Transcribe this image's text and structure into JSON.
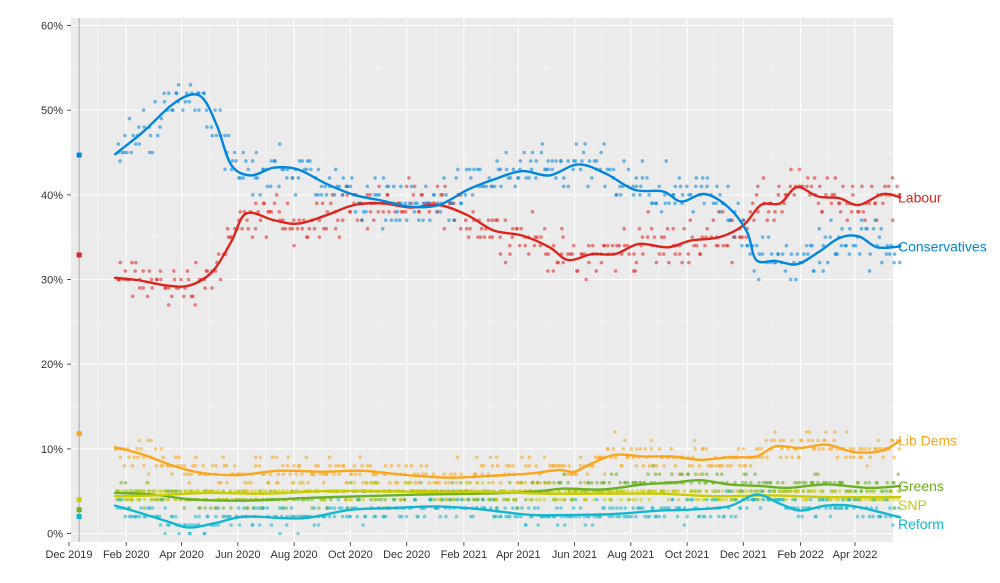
{
  "chart_data": {
    "type": "scatter",
    "title": "",
    "xlabel": "",
    "ylabel": "",
    "xlim": [
      "2019-12-01",
      "2022-05-31"
    ],
    "ylim": [
      0,
      60
    ],
    "grid": true,
    "legend": "right, direct labels at line ends",
    "x_ticks": [
      {
        "date": "2019-12-01",
        "label": "Dec 2019"
      },
      {
        "date": "2020-02-01",
        "label": "Feb 2020"
      },
      {
        "date": "2020-04-01",
        "label": "Apr 2020"
      },
      {
        "date": "2020-06-01",
        "label": "Jun 2020"
      },
      {
        "date": "2020-08-01",
        "label": "Aug 2020"
      },
      {
        "date": "2020-10-01",
        "label": "Oct 2020"
      },
      {
        "date": "2020-12-01",
        "label": "Dec 2020"
      },
      {
        "date": "2021-02-01",
        "label": "Feb 2021"
      },
      {
        "date": "2021-04-01",
        "label": "Apr 2021"
      },
      {
        "date": "2021-06-01",
        "label": "Jun 2021"
      },
      {
        "date": "2021-08-01",
        "label": "Aug 2021"
      },
      {
        "date": "2021-10-01",
        "label": "Oct 2021"
      },
      {
        "date": "2021-12-01",
        "label": "Dec 2021"
      },
      {
        "date": "2022-02-01",
        "label": "Feb 2022"
      },
      {
        "date": "2022-04-01",
        "label": "Apr 2022"
      }
    ],
    "y_ticks": [
      {
        "value": 0,
        "label": "0%"
      },
      {
        "value": 10,
        "label": "10%"
      },
      {
        "value": 20,
        "label": "20%"
      },
      {
        "value": 30,
        "label": "30%"
      },
      {
        "value": 40,
        "label": "40%"
      },
      {
        "value": 50,
        "label": "50%"
      },
      {
        "value": 60,
        "label": "60%"
      }
    ],
    "election_marker_date": "2019-12-12",
    "series": [
      {
        "name": "Labour",
        "color": "#dc241f",
        "election_result": 32.9,
        "jitter": 2.2,
        "trend": [
          [
            "2020-01-20",
            30.2
          ],
          [
            "2020-02-15",
            29.9
          ],
          [
            "2020-03-15",
            29.3
          ],
          [
            "2020-04-10",
            29.3
          ],
          [
            "2020-05-05",
            31.0
          ],
          [
            "2020-05-25",
            34.5
          ],
          [
            "2020-06-10",
            37.8
          ],
          [
            "2020-07-10",
            37.0
          ],
          [
            "2020-08-05",
            36.6
          ],
          [
            "2020-09-05",
            37.6
          ],
          [
            "2020-10-05",
            38.8
          ],
          [
            "2020-11-05",
            39.0
          ],
          [
            "2020-12-05",
            38.5
          ],
          [
            "2021-01-05",
            38.8
          ],
          [
            "2021-02-05",
            37.6
          ],
          [
            "2021-03-05",
            35.8
          ],
          [
            "2021-04-05",
            35.2
          ],
          [
            "2021-05-05",
            33.8
          ],
          [
            "2021-05-25",
            32.3
          ],
          [
            "2021-06-20",
            33.0
          ],
          [
            "2021-07-15",
            33.0
          ],
          [
            "2021-08-10",
            34.2
          ],
          [
            "2021-09-10",
            33.8
          ],
          [
            "2021-10-05",
            34.6
          ],
          [
            "2021-11-05",
            35.0
          ],
          [
            "2021-12-01",
            36.4
          ],
          [
            "2021-12-20",
            38.8
          ],
          [
            "2022-01-10",
            39.0
          ],
          [
            "2022-01-28",
            40.9
          ],
          [
            "2022-02-20",
            39.8
          ],
          [
            "2022-03-15",
            39.6
          ],
          [
            "2022-04-05",
            38.8
          ],
          [
            "2022-05-01",
            40.1
          ],
          [
            "2022-05-20",
            39.7
          ]
        ]
      },
      {
        "name": "Conservatives",
        "color": "#0087dc",
        "election_result": 44.7,
        "jitter": 2.4,
        "trend": [
          [
            "2020-01-20",
            44.8
          ],
          [
            "2020-02-20",
            47.5
          ],
          [
            "2020-03-20",
            50.5
          ],
          [
            "2020-04-10",
            51.8
          ],
          [
            "2020-04-25",
            51.3
          ],
          [
            "2020-05-10",
            48.0
          ],
          [
            "2020-05-25",
            43.5
          ],
          [
            "2020-06-15",
            42.3
          ],
          [
            "2020-07-10",
            43.2
          ],
          [
            "2020-08-05",
            43.0
          ],
          [
            "2020-09-05",
            41.3
          ],
          [
            "2020-10-05",
            40.0
          ],
          [
            "2020-11-05",
            39.3
          ],
          [
            "2020-12-05",
            38.6
          ],
          [
            "2021-01-05",
            38.8
          ],
          [
            "2021-02-05",
            40.6
          ],
          [
            "2021-03-05",
            41.8
          ],
          [
            "2021-04-05",
            42.8
          ],
          [
            "2021-05-05",
            42.3
          ],
          [
            "2021-06-05",
            43.6
          ],
          [
            "2021-07-05",
            42.5
          ],
          [
            "2021-08-05",
            40.6
          ],
          [
            "2021-09-05",
            40.4
          ],
          [
            "2021-09-25",
            39.2
          ],
          [
            "2021-10-20",
            40.1
          ],
          [
            "2021-11-15",
            38.5
          ],
          [
            "2021-12-05",
            35.6
          ],
          [
            "2021-12-15",
            32.3
          ],
          [
            "2022-01-05",
            32.2
          ],
          [
            "2022-01-28",
            31.8
          ],
          [
            "2022-02-20",
            33.2
          ],
          [
            "2022-03-15",
            34.9
          ],
          [
            "2022-04-05",
            35.1
          ],
          [
            "2022-04-25",
            33.8
          ],
          [
            "2022-05-20",
            33.9
          ]
        ]
      },
      {
        "name": "Lib Dems",
        "color": "#faa61a",
        "election_result": 11.8,
        "jitter": 1.6,
        "trend": [
          [
            "2020-01-20",
            10.2
          ],
          [
            "2020-02-20",
            9.3
          ],
          [
            "2020-03-20",
            8.1
          ],
          [
            "2020-04-20",
            7.2
          ],
          [
            "2020-06-01",
            6.9
          ],
          [
            "2020-07-15",
            7.4
          ],
          [
            "2020-09-01",
            7.3
          ],
          [
            "2020-10-15",
            7.4
          ],
          [
            "2020-12-01",
            6.9
          ],
          [
            "2021-01-15",
            6.6
          ],
          [
            "2021-03-01",
            6.8
          ],
          [
            "2021-04-15",
            7.1
          ],
          [
            "2021-05-15",
            7.5
          ],
          [
            "2021-06-01",
            7.3
          ],
          [
            "2021-06-20",
            8.3
          ],
          [
            "2021-07-15",
            9.3
          ],
          [
            "2021-08-15",
            9.1
          ],
          [
            "2021-09-15",
            9.1
          ],
          [
            "2021-10-15",
            8.7
          ],
          [
            "2021-11-15",
            9.0
          ],
          [
            "2021-12-15",
            9.1
          ],
          [
            "2022-01-05",
            10.3
          ],
          [
            "2022-02-01",
            10.1
          ],
          [
            "2022-03-01",
            10.5
          ],
          [
            "2022-04-01",
            9.6
          ],
          [
            "2022-05-01",
            9.8
          ],
          [
            "2022-05-20",
            11.0
          ]
        ]
      },
      {
        "name": "Greens",
        "color": "#6ab023",
        "election_result": 2.8,
        "jitter": 1.2,
        "trend": [
          [
            "2020-01-20",
            4.8
          ],
          [
            "2020-03-01",
            4.6
          ],
          [
            "2020-04-15",
            4.0
          ],
          [
            "2020-06-15",
            3.9
          ],
          [
            "2020-08-15",
            4.2
          ],
          [
            "2020-10-15",
            4.4
          ],
          [
            "2020-12-15",
            4.6
          ],
          [
            "2021-02-15",
            4.7
          ],
          [
            "2021-04-15",
            4.9
          ],
          [
            "2021-05-20",
            5.3
          ],
          [
            "2021-07-01",
            5.2
          ],
          [
            "2021-08-15",
            5.8
          ],
          [
            "2021-09-15",
            6.0
          ],
          [
            "2021-10-15",
            6.3
          ],
          [
            "2021-11-15",
            5.8
          ],
          [
            "2021-12-20",
            5.6
          ],
          [
            "2022-01-20",
            5.4
          ],
          [
            "2022-03-01",
            5.8
          ],
          [
            "2022-04-15",
            5.4
          ],
          [
            "2022-05-20",
            5.6
          ]
        ]
      },
      {
        "name": "SNP",
        "color": "#cbcb04",
        "election_result": 4.0,
        "jitter": 0.8,
        "trend": [
          [
            "2020-01-20",
            4.4
          ],
          [
            "2020-03-01",
            4.5
          ],
          [
            "2020-05-01",
            4.8
          ],
          [
            "2020-07-01",
            4.7
          ],
          [
            "2020-09-01",
            5.0
          ],
          [
            "2020-11-01",
            5.0
          ],
          [
            "2021-01-01",
            4.9
          ],
          [
            "2021-03-01",
            4.9
          ],
          [
            "2021-05-01",
            4.7
          ],
          [
            "2021-07-01",
            4.7
          ],
          [
            "2021-09-01",
            4.7
          ],
          [
            "2021-11-01",
            4.4
          ],
          [
            "2022-01-01",
            4.5
          ],
          [
            "2022-03-01",
            4.3
          ],
          [
            "2022-05-20",
            4.3
          ]
        ]
      },
      {
        "name": "Reform",
        "color": "#12b6cf",
        "election_result": 2.0,
        "jitter": 1.2,
        "trend": [
          [
            "2020-01-20",
            3.3
          ],
          [
            "2020-02-20",
            2.3
          ],
          [
            "2020-03-20",
            1.3
          ],
          [
            "2020-04-10",
            0.7
          ],
          [
            "2020-05-10",
            1.3
          ],
          [
            "2020-06-10",
            2.0
          ],
          [
            "2020-08-10",
            1.8
          ],
          [
            "2020-10-01",
            2.8
          ],
          [
            "2020-11-15",
            3.0
          ],
          [
            "2021-01-01",
            3.2
          ],
          [
            "2021-02-15",
            2.9
          ],
          [
            "2021-04-15",
            2.2
          ],
          [
            "2021-06-01",
            2.2
          ],
          [
            "2021-07-15",
            2.3
          ],
          [
            "2021-09-01",
            2.7
          ],
          [
            "2021-10-01",
            2.8
          ],
          [
            "2021-11-15",
            3.2
          ],
          [
            "2021-12-15",
            4.6
          ],
          [
            "2022-01-10",
            3.5
          ],
          [
            "2022-02-01",
            2.7
          ],
          [
            "2022-03-01",
            3.3
          ],
          [
            "2022-04-01",
            3.2
          ],
          [
            "2022-05-20",
            1.9
          ]
        ]
      }
    ]
  }
}
